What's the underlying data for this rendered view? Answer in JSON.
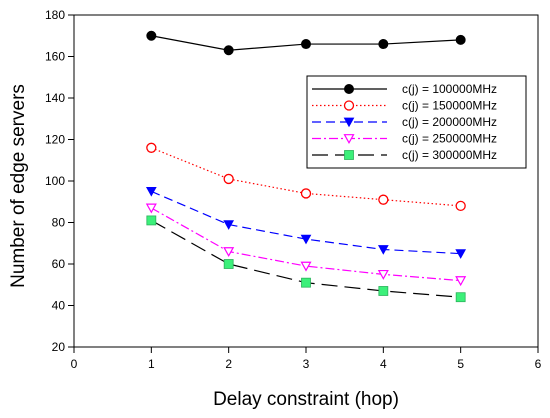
{
  "chart_data": {
    "type": "line",
    "title": "",
    "xlabel": "Delay constraint (hop)",
    "ylabel": "Number of edge servers",
    "xlim": [
      0,
      6
    ],
    "ylim": [
      20,
      180
    ],
    "xticks": [
      0,
      1,
      2,
      3,
      4,
      5,
      6
    ],
    "yticks": [
      20,
      40,
      60,
      80,
      100,
      120,
      140,
      160,
      180
    ],
    "grid": false,
    "legend_position": "upper-right",
    "x": [
      1,
      2,
      3,
      4,
      5
    ],
    "series": [
      {
        "name": "c(j) = 100000MHz",
        "values": [
          170,
          163,
          166,
          166,
          168
        ],
        "color": "#000000",
        "dash": "solid",
        "marker": "circle-filled"
      },
      {
        "name": "c(j) = 150000MHz",
        "values": [
          116,
          101,
          94,
          91,
          88
        ],
        "color": "#ff0000",
        "dash": "dotted",
        "marker": "circle-open"
      },
      {
        "name": "c(j) = 200000MHz",
        "values": [
          95,
          79,
          72,
          67,
          65
        ],
        "color": "#0000ff",
        "dash": "dashed",
        "marker": "triangle-down-filled"
      },
      {
        "name": "c(j) = 250000MHz",
        "values": [
          87,
          66,
          59,
          55,
          52
        ],
        "color": "#ff00ff",
        "dash": "dashdot",
        "marker": "triangle-down-open"
      },
      {
        "name": "c(j) = 300000MHz",
        "values": [
          81,
          60,
          51,
          47,
          44
        ],
        "color": "#000000",
        "dash": "longdash",
        "marker": "square-green"
      }
    ]
  }
}
